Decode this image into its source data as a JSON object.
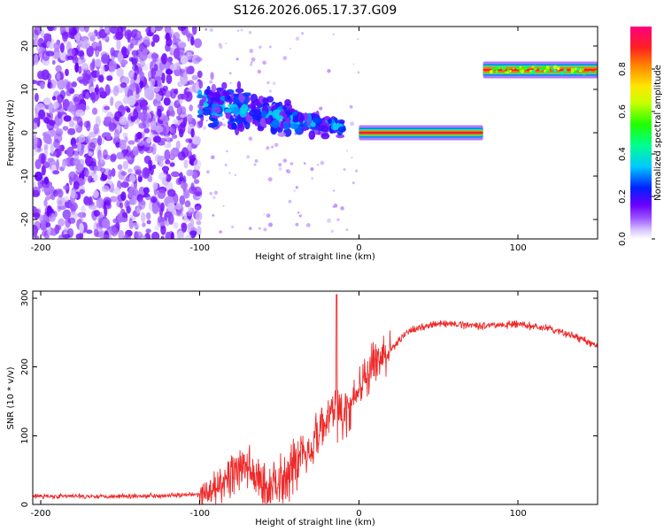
{
  "title": "S126.2026.065.17.37.G09",
  "chart_data": [
    {
      "type": "heatmap",
      "name": "spectrogram",
      "xlabel": "Height of straight line (km)",
      "ylabel": "Frequency (Hz)",
      "xlim": [
        -205,
        150
      ],
      "ylim": [
        -24.5,
        24.5
      ],
      "xticks": [
        -200,
        -100,
        0,
        100
      ],
      "yticks": [
        -20,
        -10,
        0,
        10,
        20
      ],
      "colorbar": {
        "label": "Normalized spectral amplitude",
        "range": [
          0,
          1
        ],
        "ticks": [
          0.0,
          0.2,
          0.4,
          0.6,
          0.8
        ]
      },
      "features": [
        {
          "kind": "noise",
          "x_range": [
            -205,
            -100
          ],
          "freq_range": [
            -24.5,
            24.5
          ],
          "amplitude": 0.1
        },
        {
          "kind": "transition",
          "x_range": [
            -100,
            -10
          ],
          "freq_start": 7,
          "freq_end": 1,
          "amplitude": 0.3
        },
        {
          "kind": "tone",
          "x_range": [
            0,
            78
          ],
          "freq": 0,
          "amplitude": 0.9
        },
        {
          "kind": "tone",
          "x_range": [
            78,
            150
          ],
          "freq": 14.5,
          "amplitude": 0.8
        }
      ]
    },
    {
      "type": "line",
      "name": "snr",
      "xlabel": "Height of straight line (km)",
      "ylabel": "SNR (10 * v/v)",
      "xlim": [
        -205,
        150
      ],
      "ylim": [
        0,
        310
      ],
      "xticks": [
        -200,
        -100,
        0,
        100
      ],
      "yticks": [
        0,
        100,
        200,
        300
      ],
      "series": [
        {
          "name": "SNR",
          "color": "#ee2a2a",
          "x": [
            -205,
            -150,
            -100,
            -90,
            -80,
            -70,
            -60,
            -50,
            -40,
            -30,
            -20,
            -15,
            -10,
            0,
            10,
            20,
            30,
            45,
            60,
            80,
            100,
            120,
            135,
            150
          ],
          "y": [
            12,
            12,
            14,
            20,
            45,
            55,
            25,
            35,
            60,
            90,
            120,
            150,
            120,
            170,
            205,
            225,
            250,
            262,
            262,
            260,
            262,
            255,
            245,
            230
          ]
        }
      ]
    }
  ]
}
